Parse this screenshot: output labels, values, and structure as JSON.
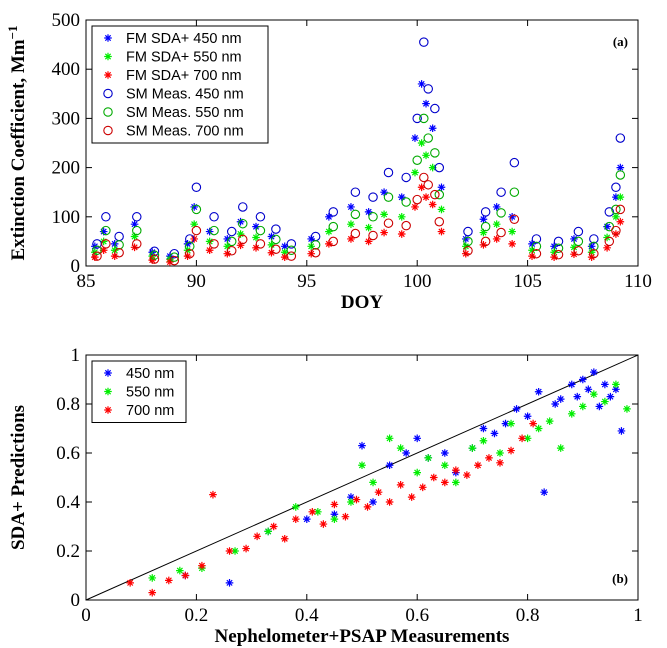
{
  "chart_data": [
    {
      "type": "scatter",
      "panel": "(a)",
      "xlabel": "DOY",
      "ylabel": "Extinction Coefficient, Mm",
      "ylabel_sup": "−1",
      "xlim": [
        85,
        110
      ],
      "ylim": [
        0,
        500
      ],
      "xticks": [
        85,
        90,
        95,
        100,
        105,
        110
      ],
      "yticks": [
        0,
        100,
        200,
        300,
        400,
        500
      ],
      "legend_position": "top-left",
      "grid": false,
      "series": [
        {
          "name": "FM SDA+ 450 nm",
          "marker": "star",
          "color": "#0000ff",
          "x": [
            85.4,
            85.8,
            86.3,
            87.2,
            88.0,
            88.8,
            89.6,
            89.9,
            90.6,
            91.4,
            92.0,
            92.7,
            93.4,
            94.0,
            95.2,
            96.0,
            97.0,
            97.8,
            98.5,
            99.3,
            99.9,
            100.2,
            100.4,
            100.7,
            101.1,
            102.2,
            103.0,
            103.6,
            104.3,
            105.2,
            106.2,
            107.1,
            107.9,
            108.6,
            109.0,
            109.2
          ],
          "y": [
            40,
            70,
            45,
            85,
            28,
            20,
            45,
            120,
            70,
            55,
            90,
            80,
            60,
            40,
            55,
            100,
            120,
            110,
            150,
            140,
            260,
            370,
            330,
            280,
            160,
            55,
            95,
            120,
            100,
            45,
            40,
            55,
            40,
            80,
            140,
            200
          ]
        },
        {
          "name": "FM SDA+ 550 nm",
          "marker": "star",
          "color": "#00ee00",
          "x": [
            85.4,
            85.8,
            86.3,
            87.2,
            88.0,
            88.8,
            89.6,
            89.9,
            90.6,
            91.4,
            92.0,
            92.7,
            93.4,
            94.0,
            95.2,
            96.0,
            97.0,
            97.8,
            98.5,
            99.3,
            99.9,
            100.2,
            100.4,
            100.7,
            101.1,
            102.2,
            103.0,
            103.6,
            104.3,
            105.2,
            106.2,
            107.1,
            107.9,
            108.6,
            109.0,
            109.2
          ],
          "y": [
            28,
            50,
            32,
            60,
            20,
            14,
            32,
            85,
            50,
            40,
            65,
            58,
            43,
            28,
            40,
            70,
            85,
            78,
            105,
            100,
            190,
            250,
            225,
            200,
            115,
            40,
            68,
            85,
            70,
            32,
            28,
            38,
            28,
            58,
            100,
            140
          ]
        },
        {
          "name": "FM SDA+ 700 nm",
          "marker": "star",
          "color": "#ff0000",
          "x": [
            85.4,
            85.8,
            86.3,
            87.2,
            88.0,
            88.8,
            89.6,
            89.9,
            90.6,
            91.4,
            92.0,
            92.7,
            93.4,
            94.0,
            95.2,
            96.0,
            97.0,
            97.8,
            98.5,
            99.3,
            99.9,
            100.2,
            100.4,
            100.7,
            101.1,
            102.2,
            103.0,
            103.6,
            104.3,
            105.2,
            106.2,
            107.1,
            107.9,
            108.6,
            109.0,
            109.2
          ],
          "y": [
            18,
            32,
            20,
            38,
            12,
            8,
            20,
            55,
            32,
            25,
            42,
            37,
            27,
            18,
            25,
            45,
            55,
            50,
            68,
            65,
            120,
            160,
            140,
            125,
            70,
            25,
            43,
            55,
            45,
            20,
            18,
            24,
            18,
            37,
            65,
            90
          ]
        },
        {
          "name": "SM Meas. 450 nm",
          "marker": "circle",
          "color": "#0000cc",
          "x": [
            85.5,
            85.9,
            86.5,
            87.3,
            88.1,
            89.0,
            89.7,
            90.0,
            90.8,
            91.6,
            92.1,
            92.9,
            93.6,
            94.3,
            95.4,
            96.2,
            97.2,
            98.0,
            98.7,
            99.5,
            100.0,
            100.3,
            100.5,
            100.8,
            101.0,
            102.3,
            103.1,
            103.8,
            104.4,
            105.4,
            106.4,
            107.3,
            108.0,
            108.7,
            109.0,
            109.2
          ],
          "y": [
            45,
            100,
            60,
            100,
            30,
            25,
            55,
            160,
            100,
            70,
            120,
            100,
            75,
            45,
            60,
            110,
            150,
            140,
            190,
            180,
            300,
            455,
            360,
            320,
            200,
            70,
            110,
            150,
            210,
            55,
            50,
            70,
            55,
            110,
            160,
            260
          ]
        },
        {
          "name": "SM Meas. 550 nm",
          "marker": "circle",
          "color": "#00aa00",
          "x": [
            85.5,
            85.9,
            86.5,
            87.3,
            88.1,
            89.0,
            89.7,
            90.0,
            90.8,
            91.6,
            92.1,
            92.9,
            93.6,
            94.3,
            95.4,
            96.2,
            97.2,
            98.0,
            98.7,
            99.5,
            100.0,
            100.3,
            100.5,
            100.8,
            101.0,
            102.3,
            103.1,
            103.8,
            104.4,
            105.4,
            106.4,
            107.3,
            108.0,
            108.7,
            109.0,
            109.2
          ],
          "y": [
            32,
            72,
            43,
            72,
            22,
            18,
            40,
            115,
            72,
            50,
            86,
            72,
            54,
            32,
            43,
            80,
            105,
            100,
            140,
            130,
            215,
            300,
            260,
            230,
            145,
            50,
            80,
            108,
            150,
            40,
            36,
            50,
            40,
            80,
            115,
            185
          ]
        },
        {
          "name": "SM Meas. 700 nm",
          "marker": "circle",
          "color": "#cc0000",
          "x": [
            85.5,
            85.9,
            86.5,
            87.3,
            88.1,
            89.0,
            89.7,
            90.0,
            90.8,
            91.6,
            92.1,
            92.9,
            93.6,
            94.3,
            95.4,
            96.2,
            97.2,
            98.0,
            98.7,
            99.5,
            100.0,
            100.3,
            100.5,
            100.8,
            101.0,
            102.3,
            103.1,
            103.8,
            104.4,
            105.4,
            106.4,
            107.3,
            108.0,
            108.7,
            109.0,
            109.2
          ],
          "y": [
            20,
            45,
            27,
            45,
            14,
            11,
            25,
            72,
            45,
            31,
            54,
            45,
            34,
            20,
            27,
            50,
            66,
            62,
            87,
            82,
            135,
            180,
            165,
            145,
            90,
            31,
            50,
            68,
            95,
            25,
            23,
            31,
            25,
            50,
            72,
            115
          ]
        }
      ]
    },
    {
      "type": "scatter",
      "panel": "(b)",
      "xlabel": "Nephelometer+PSAP Measurements",
      "ylabel": "SDA+ Predictions",
      "xlim": [
        0,
        1
      ],
      "ylim": [
        0,
        1
      ],
      "xticks": [
        0,
        0.2,
        0.4,
        0.6,
        0.8,
        1
      ],
      "yticks": [
        0,
        0.2,
        0.4,
        0.6,
        0.8,
        1
      ],
      "legend_position": "top-left",
      "grid": false,
      "reference_line": "y = x",
      "series": [
        {
          "name": "450 nm",
          "marker": "star",
          "color": "#0000ff",
          "x": [
            0.18,
            0.26,
            0.33,
            0.4,
            0.45,
            0.48,
            0.5,
            0.52,
            0.55,
            0.58,
            0.6,
            0.62,
            0.65,
            0.67,
            0.7,
            0.72,
            0.74,
            0.76,
            0.78,
            0.8,
            0.82,
            0.83,
            0.85,
            0.86,
            0.88,
            0.89,
            0.9,
            0.91,
            0.92,
            0.93,
            0.94,
            0.95,
            0.96,
            0.97
          ],
          "y": [
            0.1,
            0.07,
            0.28,
            0.33,
            0.35,
            0.42,
            0.63,
            0.4,
            0.55,
            0.6,
            0.66,
            0.58,
            0.6,
            0.52,
            0.62,
            0.7,
            0.68,
            0.72,
            0.78,
            0.75,
            0.85,
            0.44,
            0.8,
            0.82,
            0.88,
            0.83,
            0.9,
            0.86,
            0.93,
            0.79,
            0.88,
            0.83,
            0.86,
            0.69
          ]
        },
        {
          "name": "550 nm",
          "marker": "star",
          "color": "#00ee00",
          "x": [
            0.12,
            0.17,
            0.21,
            0.27,
            0.33,
            0.38,
            0.42,
            0.45,
            0.48,
            0.5,
            0.52,
            0.55,
            0.57,
            0.6,
            0.62,
            0.65,
            0.67,
            0.7,
            0.72,
            0.75,
            0.77,
            0.8,
            0.82,
            0.84,
            0.86,
            0.88,
            0.9,
            0.92,
            0.94,
            0.96,
            0.98
          ],
          "y": [
            0.09,
            0.12,
            0.13,
            0.2,
            0.28,
            0.38,
            0.36,
            0.33,
            0.4,
            0.55,
            0.48,
            0.66,
            0.62,
            0.52,
            0.58,
            0.55,
            0.48,
            0.62,
            0.65,
            0.6,
            0.72,
            0.66,
            0.7,
            0.73,
            0.62,
            0.76,
            0.79,
            0.84,
            0.81,
            0.88,
            0.78
          ]
        },
        {
          "name": "700 nm",
          "marker": "star",
          "color": "#ff0000",
          "x": [
            0.08,
            0.12,
            0.15,
            0.18,
            0.21,
            0.23,
            0.26,
            0.29,
            0.31,
            0.34,
            0.36,
            0.38,
            0.41,
            0.43,
            0.45,
            0.47,
            0.49,
            0.51,
            0.53,
            0.55,
            0.57,
            0.59,
            0.61,
            0.63,
            0.65,
            0.67,
            0.69,
            0.71,
            0.73,
            0.75,
            0.77,
            0.79,
            0.81
          ],
          "y": [
            0.07,
            0.03,
            0.08,
            0.1,
            0.14,
            0.43,
            0.2,
            0.21,
            0.26,
            0.3,
            0.25,
            0.33,
            0.36,
            0.31,
            0.39,
            0.34,
            0.41,
            0.38,
            0.44,
            0.4,
            0.47,
            0.42,
            0.46,
            0.5,
            0.48,
            0.53,
            0.51,
            0.55,
            0.58,
            0.56,
            0.61,
            0.66,
            0.72
          ]
        }
      ]
    }
  ]
}
